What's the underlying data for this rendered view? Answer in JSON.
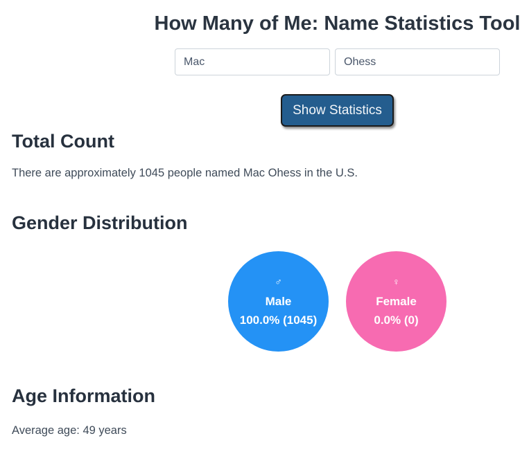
{
  "page": {
    "title": "How Many of Me: Name Statistics Tool"
  },
  "form": {
    "first_name": {
      "value": "Mac"
    },
    "last_name": {
      "value": "Ohess"
    },
    "submit_label": "Show Statistics"
  },
  "total_count": {
    "heading": "Total Count",
    "text": "There are approximately 1045 people named Mac Ohess in the U.S."
  },
  "gender": {
    "heading": "Gender Distribution",
    "male": {
      "symbol": "♂",
      "label": "Male",
      "value": "100.0% (1045)",
      "color": "#2492f5"
    },
    "female": {
      "symbol": "♀",
      "label": "Female",
      "value": "0.0% (0)",
      "color": "#f76bb1"
    }
  },
  "age": {
    "heading": "Age Information",
    "text": "Average age: 49 years"
  },
  "colors": {
    "button": "#245d8e",
    "heading": "#27313e",
    "body_text": "#3f4b59",
    "male_circle": "#2492f5",
    "female_circle": "#f76bb1"
  },
  "chart_data": {
    "type": "pie",
    "title": "Gender Distribution",
    "categories": [
      "Male",
      "Female"
    ],
    "values": [
      100.0,
      0.0
    ],
    "counts": [
      1045,
      0
    ],
    "legend_position": "inside",
    "colors": [
      "#2492f5",
      "#f76bb1"
    ]
  }
}
